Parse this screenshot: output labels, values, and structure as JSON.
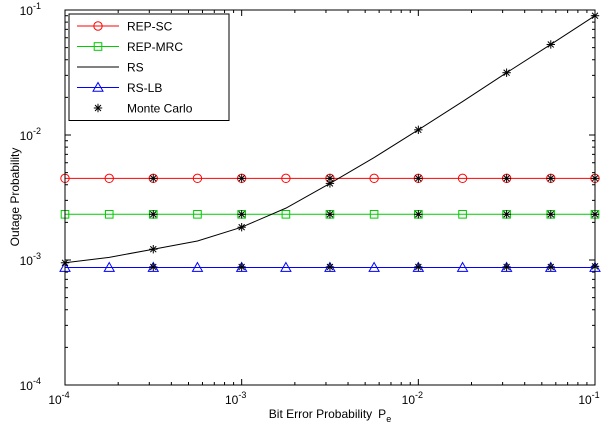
{
  "chart_data": {
    "type": "line",
    "title": "",
    "xlabel": "Bit Error Probability",
    "xlabel_symbol": "P",
    "xlabel_subscript": "e",
    "ylabel": "Outage Probability",
    "xscale": "log",
    "yscale": "log",
    "xlim": [
      0.0001,
      0.1
    ],
    "ylim": [
      0.0001,
      0.1
    ],
    "x_ticks": [
      {
        "base": "10",
        "exp": "-4"
      },
      {
        "base": "10",
        "exp": "-3"
      },
      {
        "base": "10",
        "exp": "-2"
      },
      {
        "base": "10",
        "exp": "-1"
      }
    ],
    "y_ticks": [
      {
        "base": "10",
        "exp": "-4"
      },
      {
        "base": "10",
        "exp": "-3"
      },
      {
        "base": "10",
        "exp": "-2"
      },
      {
        "base": "10",
        "exp": "-1"
      }
    ],
    "grid": false,
    "legend_position": "top-left",
    "series": [
      {
        "name": "REP-SC",
        "color": "#ff0000",
        "marker": "circle",
        "x": [
          0.0001,
          0.000178,
          0.000316,
          0.000562,
          0.001,
          0.00178,
          0.00316,
          0.00562,
          0.01,
          0.0178,
          0.0316,
          0.0562,
          0.1
        ],
        "y": [
          0.0045,
          0.0045,
          0.0045,
          0.0045,
          0.0045,
          0.0045,
          0.0045,
          0.0045,
          0.0045,
          0.0045,
          0.0045,
          0.0045,
          0.0045
        ]
      },
      {
        "name": "REP-MRC",
        "color": "#00cc00",
        "marker": "square",
        "x": [
          0.0001,
          0.000178,
          0.000316,
          0.000562,
          0.001,
          0.00178,
          0.00316,
          0.00562,
          0.01,
          0.0178,
          0.0316,
          0.0562,
          0.1
        ],
        "y": [
          0.00232,
          0.00232,
          0.00232,
          0.00232,
          0.00232,
          0.00232,
          0.00232,
          0.00232,
          0.00232,
          0.00232,
          0.00232,
          0.00232,
          0.00232
        ]
      },
      {
        "name": "RS",
        "color": "#000000",
        "marker": "none",
        "x": [
          0.0001,
          0.000178,
          0.000316,
          0.000562,
          0.001,
          0.00178,
          0.00316,
          0.00562,
          0.01,
          0.0178,
          0.0316,
          0.0562,
          0.1
        ],
        "y": [
          0.00095,
          0.00105,
          0.00122,
          0.00142,
          0.00183,
          0.0026,
          0.0041,
          0.0066,
          0.011,
          0.0185,
          0.0315,
          0.053,
          0.09
        ]
      },
      {
        "name": "RS-LB",
        "color": "#0000ff",
        "marker": "triangle",
        "x": [
          0.0001,
          0.000178,
          0.000316,
          0.000562,
          0.001,
          0.00178,
          0.00316,
          0.00562,
          0.01,
          0.0178,
          0.0316,
          0.0562,
          0.1
        ],
        "y": [
          0.00087,
          0.00087,
          0.00087,
          0.00087,
          0.00087,
          0.00087,
          0.00087,
          0.00087,
          0.00087,
          0.00087,
          0.00087,
          0.00087,
          0.00087
        ]
      },
      {
        "name": "Monte Carlo",
        "color": "#000000",
        "marker": "asterisk",
        "points": [
          {
            "x": 0.0001,
            "y": 0.00095
          },
          {
            "x": 0.000316,
            "y": 0.0045
          },
          {
            "x": 0.000316,
            "y": 0.00232
          },
          {
            "x": 0.000316,
            "y": 0.00122
          },
          {
            "x": 0.000316,
            "y": 0.00088
          },
          {
            "x": 0.001,
            "y": 0.0045
          },
          {
            "x": 0.001,
            "y": 0.00232
          },
          {
            "x": 0.001,
            "y": 0.00183
          },
          {
            "x": 0.001,
            "y": 0.00088
          },
          {
            "x": 0.00316,
            "y": 0.0045
          },
          {
            "x": 0.00316,
            "y": 0.0041
          },
          {
            "x": 0.00316,
            "y": 0.00232
          },
          {
            "x": 0.00316,
            "y": 0.00088
          },
          {
            "x": 0.01,
            "y": 0.0045
          },
          {
            "x": 0.01,
            "y": 0.011
          },
          {
            "x": 0.01,
            "y": 0.00232
          },
          {
            "x": 0.01,
            "y": 0.00088
          },
          {
            "x": 0.0316,
            "y": 0.0315
          },
          {
            "x": 0.0316,
            "y": 0.0045
          },
          {
            "x": 0.0316,
            "y": 0.00232
          },
          {
            "x": 0.0316,
            "y": 0.00088
          },
          {
            "x": 0.0562,
            "y": 0.053
          },
          {
            "x": 0.0562,
            "y": 0.0045
          },
          {
            "x": 0.0562,
            "y": 0.00232
          },
          {
            "x": 0.0562,
            "y": 0.00088
          },
          {
            "x": 0.1,
            "y": 0.09
          },
          {
            "x": 0.1,
            "y": 0.0045
          },
          {
            "x": 0.1,
            "y": 0.00232
          },
          {
            "x": 0.1,
            "y": 0.00089
          }
        ]
      }
    ]
  }
}
